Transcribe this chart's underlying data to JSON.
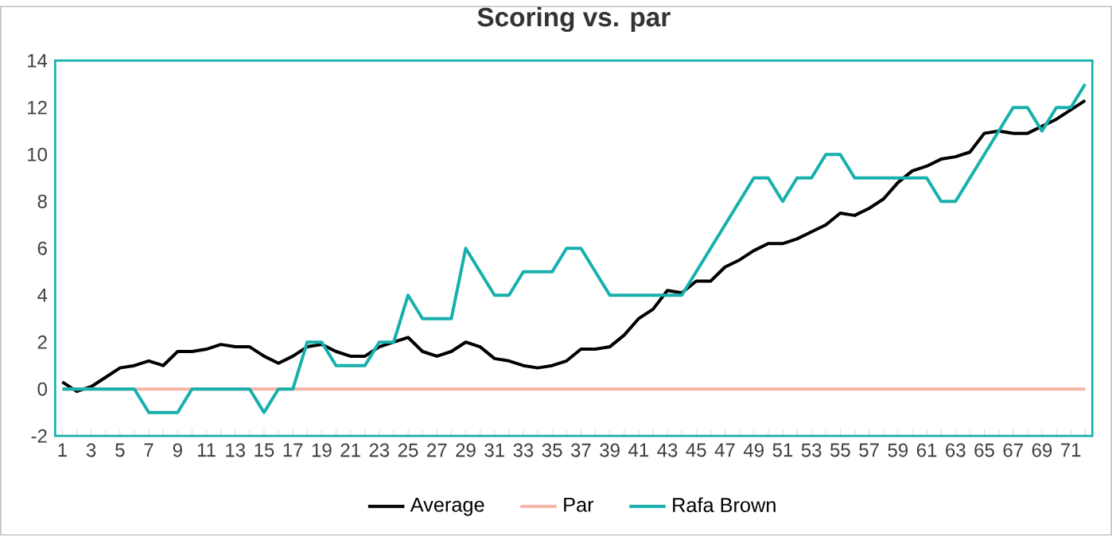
{
  "chart_data": {
    "type": "line",
    "title": "Scoring vs. par",
    "categories": [
      "1",
      null,
      "3",
      null,
      "5",
      null,
      "7",
      null,
      "9",
      null,
      "11",
      null,
      "13",
      null,
      "15",
      null,
      "17",
      null,
      "19",
      null,
      "21",
      null,
      "23",
      null,
      "25",
      null,
      "27",
      null,
      "29",
      null,
      "31",
      null,
      "33",
      null,
      "35",
      null,
      "37",
      null,
      "39",
      null,
      "41",
      null,
      "43",
      null,
      "45",
      null,
      "47",
      null,
      "49",
      null,
      "51",
      null,
      "53",
      null,
      "55",
      null,
      "57",
      null,
      "59",
      null,
      "61",
      null,
      "63",
      null,
      "65",
      null,
      "67",
      null,
      "69",
      null,
      "71",
      null
    ],
    "series": [
      {
        "name": "Average",
        "color": "#000000",
        "values": [
          0.3,
          -0.1,
          0.1,
          0.5,
          0.9,
          1.0,
          1.2,
          1.0,
          1.6,
          1.6,
          1.7,
          1.9,
          1.8,
          1.8,
          1.4,
          1.1,
          1.4,
          1.8,
          1.9,
          1.6,
          1.4,
          1.4,
          1.8,
          2.0,
          2.2,
          1.6,
          1.4,
          1.6,
          2.0,
          1.8,
          1.3,
          1.2,
          1.0,
          0.9,
          1.0,
          1.2,
          1.7,
          1.7,
          1.8,
          2.3,
          3.0,
          3.4,
          4.2,
          4.1,
          4.6,
          4.6,
          5.2,
          5.5,
          5.9,
          6.2,
          6.2,
          6.4,
          6.7,
          7.0,
          7.5,
          7.4,
          7.7,
          8.1,
          8.8,
          9.3,
          9.5,
          9.8,
          9.9,
          10.1,
          10.9,
          11.0,
          10.9,
          10.9,
          11.2,
          11.5,
          11.9,
          12.3
        ]
      },
      {
        "name": "Par",
        "color": "#f4b6a6",
        "values": [
          0,
          0,
          0,
          0,
          0,
          0,
          0,
          0,
          0,
          0,
          0,
          0,
          0,
          0,
          0,
          0,
          0,
          0,
          0,
          0,
          0,
          0,
          0,
          0,
          0,
          0,
          0,
          0,
          0,
          0,
          0,
          0,
          0,
          0,
          0,
          0,
          0,
          0,
          0,
          0,
          0,
          0,
          0,
          0,
          0,
          0,
          0,
          0,
          0,
          0,
          0,
          0,
          0,
          0,
          0,
          0,
          0,
          0,
          0,
          0,
          0,
          0,
          0,
          0,
          0,
          0,
          0,
          0,
          0,
          0,
          0,
          0
        ]
      },
      {
        "name": "Rafa Brown",
        "color": "#17b0ad",
        "values": [
          0,
          0,
          0,
          0,
          0,
          0,
          -1,
          -1,
          -1,
          0,
          0,
          0,
          0,
          0,
          -1,
          0,
          0,
          2,
          2,
          1,
          1,
          1,
          2,
          2,
          4,
          3,
          3,
          3,
          6,
          5,
          4,
          4,
          5,
          5,
          5,
          6,
          6,
          5,
          4,
          4,
          4,
          4,
          4,
          4,
          5,
          6,
          7,
          8,
          9,
          9,
          8,
          9,
          9,
          10,
          10,
          9,
          9,
          9,
          9,
          9,
          9,
          8,
          8,
          9,
          10,
          11,
          12,
          12,
          11,
          12,
          12,
          13
        ]
      }
    ],
    "ylim": [
      -2,
      14
    ],
    "yticks": [
      -2,
      0,
      2,
      4,
      6,
      8,
      10,
      12,
      14
    ],
    "legend": "bottom"
  }
}
